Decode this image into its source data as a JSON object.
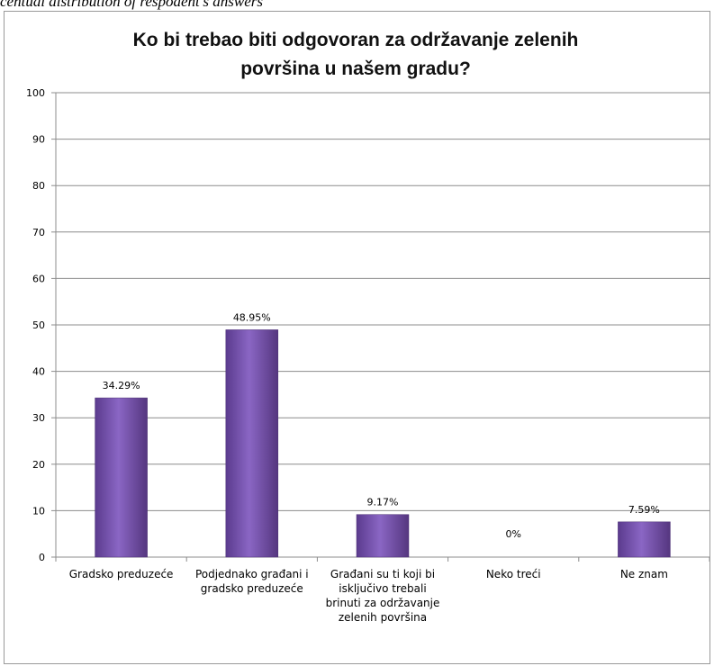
{
  "caption": "centual distribution of respodent's answers",
  "chart_data": {
    "type": "bar",
    "title": "Ko bi trebao biti odgovoran za održavanje zelenih površina u našem gradu?",
    "title_lines": [
      "Ko bi trebao biti odgovoran za održavanje zelenih",
      "površina u našem gradu?"
    ],
    "categories": [
      "Gradsko preduzeće",
      "Podjednako građani i gradsko preduzeće",
      "Građani su ti koji bi isključivo trebali brinuti za održavanje zelenih površina",
      "Neko treći",
      "Ne znam"
    ],
    "category_lines": [
      [
        "Gradsko preduzeće"
      ],
      [
        "Podjednako građani i",
        "gradsko preduzeće"
      ],
      [
        "Građani su ti koji bi",
        "isključivo trebali",
        "brinuti za održavanje",
        "zelenih površina"
      ],
      [
        "Neko treći"
      ],
      [
        "Ne znam"
      ]
    ],
    "values": [
      34.29,
      48.95,
      9.17,
      0,
      7.59
    ],
    "data_labels": [
      "34.29%",
      "48.95%",
      "9.17%",
      "0%",
      "7.59%"
    ],
    "ylim": [
      0,
      100
    ],
    "yticks": [
      "0",
      "10",
      "20",
      "30",
      "40",
      "50",
      "60",
      "70",
      "80",
      "90",
      "100"
    ],
    "grid": true,
    "legend": "none",
    "bar_color": "#7a55b3"
  }
}
